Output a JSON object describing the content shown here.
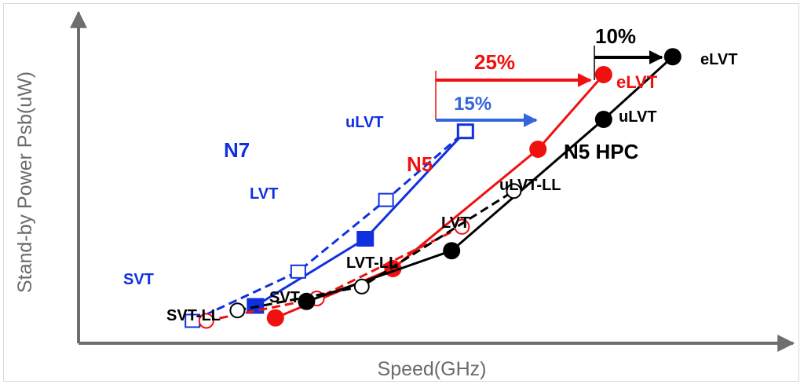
{
  "chart_data": {
    "type": "line",
    "xlabel": "Speed(GHz)",
    "ylabel": "Stand-by Power Psb(uW)",
    "grid": false,
    "series": [
      {
        "name": "N7",
        "color": "#1030e0",
        "style": "solid",
        "marker": "filled-square",
        "points": [
          {
            "x": 2.56,
            "y": 0.25
          },
          {
            "x": 4.15,
            "y": 0.7
          },
          {
            "x": 5.6,
            "y": 1.42
          }
        ]
      },
      {
        "name": "",
        "color": "#1030e0",
        "style": "dashed",
        "marker": "open-square",
        "points": [
          {
            "x": 1.65,
            "y": 0.15
          },
          {
            "x": 3.18,
            "y": 0.48
          },
          {
            "x": 4.45,
            "y": 0.96
          },
          {
            "x": 5.6,
            "y": 1.42
          }
        ]
      },
      {
        "name": "N5",
        "color": "#f01010",
        "style": "solid",
        "marker": "filled-circle",
        "points": [
          {
            "x": 2.85,
            "y": 0.17
          },
          {
            "x": 4.55,
            "y": 0.5
          },
          {
            "x": 6.65,
            "y": 1.3
          },
          {
            "x": 7.6,
            "y": 1.8
          }
        ]
      },
      {
        "name": "",
        "color": "#f01010",
        "style": "dashed",
        "marker": "open-circle",
        "points": [
          {
            "x": 1.85,
            "y": 0.15
          },
          {
            "x": 3.45,
            "y": 0.3
          },
          {
            "x": 5.55,
            "y": 0.78
          }
        ]
      },
      {
        "name": "N5 HPC",
        "color": "#000000",
        "style": "solid",
        "marker": "filled-circle",
        "points": [
          {
            "x": 3.3,
            "y": 0.28
          },
          {
            "x": 5.4,
            "y": 0.62
          },
          {
            "x": 7.6,
            "y": 1.5
          },
          {
            "x": 8.6,
            "y": 1.92
          }
        ]
      },
      {
        "name": "",
        "color": "#000000",
        "style": "dashed",
        "marker": "open-circle",
        "points": [
          {
            "x": 2.3,
            "y": 0.22
          },
          {
            "x": 4.1,
            "y": 0.38
          },
          {
            "x": 6.3,
            "y": 1.02
          }
        ]
      }
    ],
    "annotations": [
      {
        "text": "N7",
        "color": "#1030e0"
      },
      {
        "text": "N5",
        "color": "#f01010"
      },
      {
        "text": "N5 HPC",
        "color": "#000000"
      },
      {
        "text": "uLVT",
        "color": "#1030e0"
      },
      {
        "text": "LVT",
        "color": "#1030e0"
      },
      {
        "text": "SVT",
        "color": "#1030e0"
      },
      {
        "text": "eLVT",
        "color": "#f01010"
      },
      {
        "text": "eLVT",
        "color": "#000000"
      },
      {
        "text": "uLVT",
        "color": "#000000"
      },
      {
        "text": "LVT",
        "color": "#000000"
      },
      {
        "text": "SVT",
        "color": "#000000"
      },
      {
        "text": "uLVT-LL",
        "color": "#000000"
      },
      {
        "text": "LVT-LL",
        "color": "#000000"
      },
      {
        "text": "SVT-LL",
        "color": "#000000"
      },
      {
        "text": "15%",
        "color": "#3366dd"
      },
      {
        "text": "25%",
        "color": "#f01010"
      },
      {
        "text": "10%",
        "color": "#000000"
      }
    ]
  }
}
